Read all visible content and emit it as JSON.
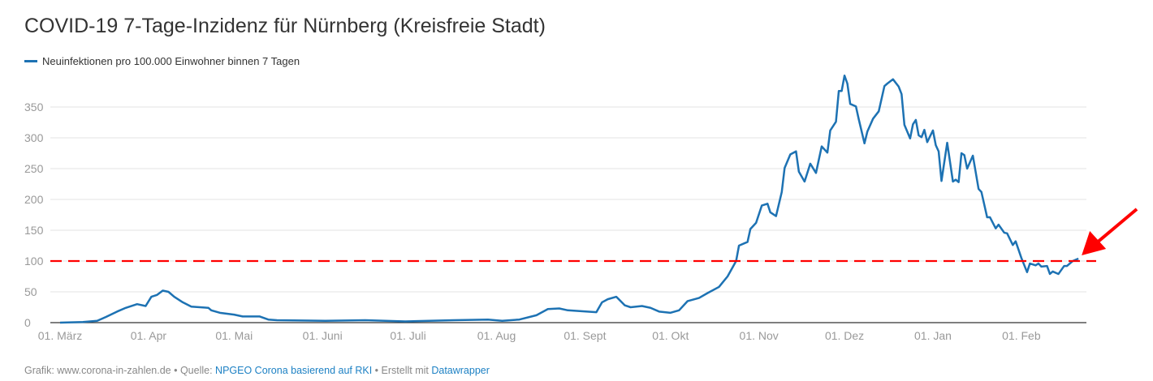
{
  "chart_data": {
    "type": "line",
    "title": "COVID-19 7-Tage-Inzidenz für Nürnberg (Kreisfreie Stadt)",
    "legend": [
      "Neuinfektionen pro 100.000 Einwohner binnen 7 Tagen"
    ],
    "legend_position": "top-left",
    "x_unit": "days since 01. März",
    "x_ticks": [
      {
        "x": 0,
        "label": "01. März"
      },
      {
        "x": 31,
        "label": "01. Apr"
      },
      {
        "x": 61,
        "label": "01. Mai"
      },
      {
        "x": 92,
        "label": "01. Juni"
      },
      {
        "x": 122,
        "label": "01. Juli"
      },
      {
        "x": 153,
        "label": "01. Aug"
      },
      {
        "x": 184,
        "label": "01. Sept"
      },
      {
        "x": 214,
        "label": "01. Okt"
      },
      {
        "x": 245,
        "label": "01. Nov"
      },
      {
        "x": 275,
        "label": "01. Dez"
      },
      {
        "x": 306,
        "label": "01. Jan"
      },
      {
        "x": 337,
        "label": "01. Feb"
      }
    ],
    "y_ticks": [
      0,
      50,
      100,
      150,
      200,
      250,
      300,
      350
    ],
    "ylim": [
      0,
      400
    ],
    "xlim": [
      0,
      360
    ],
    "grid": true,
    "reference_line": {
      "y": 100,
      "color": "#ff0000",
      "style": "dashed"
    },
    "annotation": {
      "type": "arrow",
      "color": "#ff0000",
      "points_to_x": 357
    },
    "series": [
      {
        "name": "Neuinfektionen pro 100.000 Einwohner binnen 7 Tagen",
        "color": "#1d72b3",
        "points": [
          [
            0,
            0
          ],
          [
            8,
            1
          ],
          [
            13,
            3
          ],
          [
            16,
            9
          ],
          [
            20,
            18
          ],
          [
            23,
            24
          ],
          [
            27,
            30
          ],
          [
            30,
            27
          ],
          [
            32,
            42
          ],
          [
            34,
            45
          ],
          [
            36,
            52
          ],
          [
            38,
            50
          ],
          [
            40,
            42
          ],
          [
            43,
            33
          ],
          [
            46,
            26
          ],
          [
            52,
            24
          ],
          [
            53,
            20
          ],
          [
            56,
            16
          ],
          [
            61,
            13
          ],
          [
            64,
            10
          ],
          [
            70,
            10
          ],
          [
            73,
            5
          ],
          [
            76,
            4
          ],
          [
            93,
            3
          ],
          [
            107,
            4
          ],
          [
            121,
            2
          ],
          [
            138,
            4
          ],
          [
            150,
            5
          ],
          [
            155,
            3
          ],
          [
            161,
            5
          ],
          [
            167,
            12
          ],
          [
            171,
            22
          ],
          [
            175,
            23
          ],
          [
            178,
            20
          ],
          [
            188,
            17
          ],
          [
            190,
            33
          ],
          [
            192,
            38
          ],
          [
            195,
            42
          ],
          [
            198,
            28
          ],
          [
            200,
            25
          ],
          [
            204,
            27
          ],
          [
            207,
            24
          ],
          [
            210,
            18
          ],
          [
            214,
            16
          ],
          [
            217,
            20
          ],
          [
            220,
            35
          ],
          [
            224,
            40
          ],
          [
            227,
            48
          ],
          [
            231,
            58
          ],
          [
            234,
            75
          ],
          [
            237,
            100
          ],
          [
            238,
            125
          ],
          [
            241,
            131
          ],
          [
            242,
            152
          ],
          [
            244,
            162
          ],
          [
            246,
            190
          ],
          [
            248,
            193
          ],
          [
            249,
            179
          ],
          [
            251,
            173
          ],
          [
            253,
            212
          ],
          [
            254,
            251
          ],
          [
            256,
            273
          ],
          [
            258,
            278
          ],
          [
            259,
            245
          ],
          [
            261,
            229
          ],
          [
            263,
            258
          ],
          [
            265,
            243
          ],
          [
            267,
            286
          ],
          [
            269,
            276
          ],
          [
            270,
            312
          ],
          [
            272,
            326
          ],
          [
            273,
            376
          ],
          [
            274,
            376
          ],
          [
            275,
            401
          ],
          [
            276,
            388
          ],
          [
            277,
            355
          ],
          [
            279,
            351
          ],
          [
            280,
            330
          ],
          [
            282,
            291
          ],
          [
            283,
            310
          ],
          [
            285,
            331
          ],
          [
            287,
            343
          ],
          [
            289,
            384
          ],
          [
            290,
            388
          ],
          [
            292,
            395
          ],
          [
            294,
            383
          ],
          [
            295,
            371
          ],
          [
            296,
            321
          ],
          [
            298,
            299
          ],
          [
            299,
            322
          ],
          [
            300,
            329
          ],
          [
            301,
            304
          ],
          [
            302,
            301
          ],
          [
            303,
            313
          ],
          [
            304,
            293
          ],
          [
            306,
            312
          ],
          [
            307,
            288
          ],
          [
            308,
            278
          ],
          [
            309,
            230
          ],
          [
            311,
            292
          ],
          [
            313,
            229
          ],
          [
            314,
            232
          ],
          [
            315,
            228
          ],
          [
            316,
            275
          ],
          [
            317,
            272
          ],
          [
            318,
            250
          ],
          [
            320,
            271
          ],
          [
            322,
            217
          ],
          [
            323,
            212
          ],
          [
            325,
            171
          ],
          [
            326,
            171
          ],
          [
            328,
            153
          ],
          [
            329,
            159
          ],
          [
            331,
            146
          ],
          [
            332,
            145
          ],
          [
            334,
            126
          ],
          [
            335,
            132
          ],
          [
            337,
            105
          ],
          [
            339,
            82
          ],
          [
            340,
            96
          ],
          [
            342,
            93
          ],
          [
            343,
            96
          ],
          [
            344,
            91
          ],
          [
            346,
            92
          ],
          [
            347,
            79
          ],
          [
            348,
            83
          ],
          [
            350,
            79
          ],
          [
            352,
            92
          ],
          [
            353,
            92
          ],
          [
            355,
            100
          ],
          [
            357,
            104
          ]
        ]
      }
    ]
  },
  "footer": {
    "prefix": "Grafik: www.corona-in-zahlen.de • Quelle: ",
    "source_link": "NPGEO Corona basierend auf RKI",
    "middle": " • Erstellt mit ",
    "tool_link": "Datawrapper"
  }
}
